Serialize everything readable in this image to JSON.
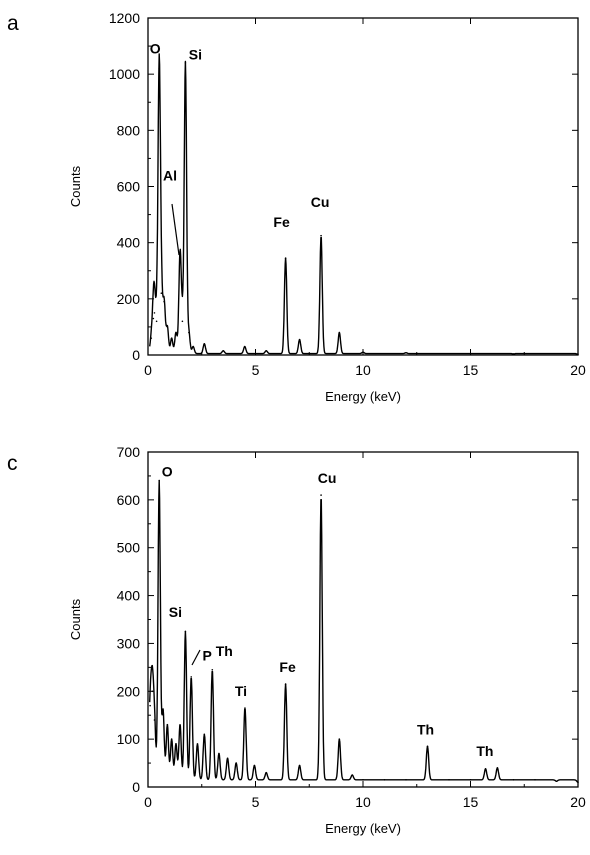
{
  "chart_data": [
    {
      "type": "line",
      "panel_label": "a",
      "xlabel": "Energy (keV)",
      "ylabel": "Counts",
      "xlim": [
        0,
        20
      ],
      "ylim": [
        0,
        1200
      ],
      "xticks": [
        "0",
        "5",
        "10",
        "15",
        "20"
      ],
      "yticks": [
        "0",
        "200",
        "400",
        "600",
        "800",
        "1000",
        "1200"
      ],
      "grid": false,
      "baseline": 5,
      "series": [
        {
          "x": [
            0.15,
            0.25,
            0.3,
            0.4,
            0.52,
            0.62,
            0.75,
            0.9,
            1.1,
            1.3,
            1.49,
            1.6,
            1.74,
            1.9,
            2.1,
            2.62,
            3.5,
            4.5,
            5.5,
            6.4,
            7.05,
            8.05,
            8.9,
            10,
            12,
            15,
            17,
            20
          ],
          "y": [
            60,
            130,
            150,
            120,
            1020,
            220,
            190,
            100,
            60,
            80,
            360,
            120,
            1040,
            80,
            30,
            40,
            15,
            30,
            15,
            345,
            55,
            425,
            80,
            10,
            8,
            5,
            4,
            3
          ]
        }
      ],
      "annotations": [
        {
          "label": "O",
          "x": 0.52,
          "y": 1030
        },
        {
          "label": "Si",
          "x": 1.74,
          "y": 1010
        },
        {
          "label": "Al",
          "x": 1.49,
          "y": 600
        },
        {
          "label": "Fe",
          "x": 6.4,
          "y": 420
        },
        {
          "label": "Cu",
          "x": 8.05,
          "y": 495
        }
      ]
    },
    {
      "type": "line",
      "panel_label": "c",
      "xlabel": "Energy (keV)",
      "ylabel": "Counts",
      "xlim": [
        0,
        20
      ],
      "ylim": [
        0,
        700
      ],
      "xticks": [
        "0",
        "5",
        "10",
        "15",
        "20"
      ],
      "yticks": [
        "0",
        "100",
        "200",
        "300",
        "400",
        "500",
        "600",
        "700"
      ],
      "grid": false,
      "baseline": 15,
      "series": [
        {
          "x": [
            0.1,
            0.2,
            0.3,
            0.52,
            0.7,
            0.9,
            1.1,
            1.3,
            1.49,
            1.74,
            2.01,
            2.3,
            2.62,
            2.99,
            3.3,
            3.7,
            4.1,
            4.51,
            4.95,
            5.5,
            6.4,
            7.05,
            8.05,
            8.9,
            9.5,
            10,
            11,
            12,
            13.0,
            14,
            15,
            15.7,
            16.25,
            17,
            18,
            19,
            20
          ],
          "y": [
            170,
            200,
            140,
            640,
            160,
            130,
            100,
            90,
            130,
            325,
            230,
            90,
            110,
            245,
            70,
            60,
            50,
            165,
            45,
            30,
            215,
            45,
            610,
            100,
            25,
            15,
            15,
            15,
            85,
            15,
            15,
            38,
            40,
            15,
            15,
            12,
            10
          ]
        }
      ],
      "annotations": [
        {
          "label": "O",
          "x": 0.52,
          "y": 640
        },
        {
          "label": "Si",
          "x": 1.74,
          "y": 330
        },
        {
          "label": "P",
          "x": 2.01,
          "y": 235
        },
        {
          "label": "Th",
          "x": 2.99,
          "y": 245
        },
        {
          "label": "Ti",
          "x": 4.51,
          "y": 165
        },
        {
          "label": "Fe",
          "x": 6.4,
          "y": 215
        },
        {
          "label": "Cu",
          "x": 8.05,
          "y": 610
        },
        {
          "label": "Th",
          "x": 13.0,
          "y": 85
        },
        {
          "label": "Th",
          "x": 15.95,
          "y": 40
        }
      ]
    }
  ]
}
